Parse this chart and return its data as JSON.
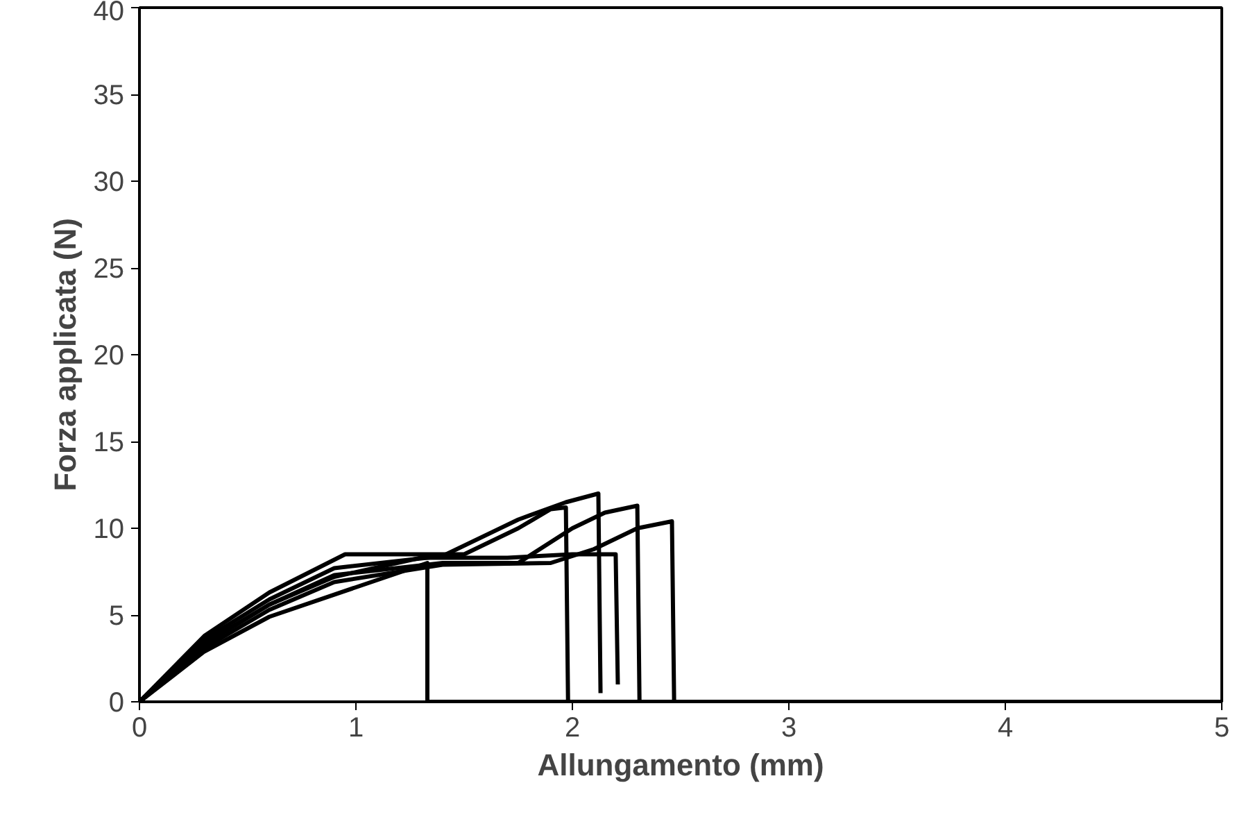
{
  "chart_data": {
    "type": "line",
    "xlabel": "Allungamento (mm)",
    "ylabel": "Forza applicata (N)",
    "xlim": [
      0,
      5
    ],
    "ylim": [
      0,
      40
    ],
    "xticks": [
      0,
      1,
      2,
      3,
      4,
      5
    ],
    "yticks": [
      0,
      5,
      10,
      15,
      20,
      25,
      30,
      35,
      40
    ],
    "grid": false,
    "marker": "none",
    "line_style": "solid",
    "series": [
      {
        "color": "#000000",
        "x": [
          0,
          0.3,
          0.6,
          1.0,
          1.33,
          1.33,
          5
        ],
        "values": [
          0,
          2.9,
          4.9,
          6.6,
          8.0,
          0,
          0
        ]
      },
      {
        "color": "#000000",
        "x": [
          0,
          0.3,
          0.6,
          0.95,
          1.5,
          1.75,
          1.9,
          1.97,
          1.98
        ],
        "values": [
          0,
          3.8,
          6.3,
          8.5,
          8.5,
          10.0,
          11.1,
          11.2,
          0
        ]
      },
      {
        "color": "#000000",
        "x": [
          0,
          0.3,
          0.6,
          0.9,
          1.4,
          1.75,
          1.97,
          2.12,
          2.13
        ],
        "values": [
          0,
          3.6,
          5.9,
          7.7,
          8.4,
          10.5,
          11.5,
          12.0,
          0.5
        ]
      },
      {
        "color": "#000000",
        "x": [
          0,
          0.3,
          0.6,
          0.9,
          1.3,
          1.7,
          2.0,
          2.2,
          2.21
        ],
        "values": [
          0,
          3.3,
          5.6,
          7.2,
          8.3,
          8.3,
          8.5,
          8.5,
          1.0
        ]
      },
      {
        "color": "#000000",
        "x": [
          0,
          0.3,
          0.6,
          0.9,
          1.4,
          1.75,
          2.0,
          2.15,
          2.3,
          2.31
        ],
        "values": [
          0,
          3.4,
          5.6,
          7.3,
          8.0,
          8.0,
          10.0,
          10.9,
          11.3,
          0
        ]
      },
      {
        "color": "#000000",
        "x": [
          0,
          0.3,
          0.6,
          0.9,
          1.4,
          1.9,
          2.1,
          2.3,
          2.46,
          2.47
        ],
        "values": [
          0,
          3.1,
          5.3,
          6.9,
          7.9,
          8.0,
          8.8,
          10.0,
          10.4,
          0
        ]
      }
    ]
  }
}
